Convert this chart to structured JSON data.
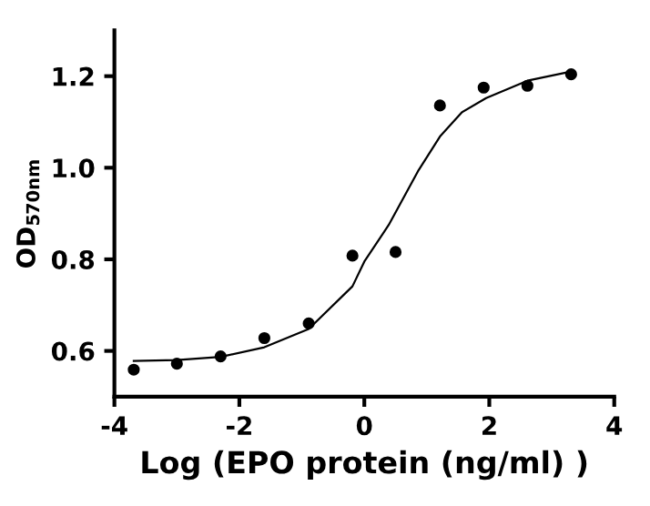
{
  "chart_data": {
    "type": "scatter",
    "xlabel": "Log (EPO protein (ng/ml) )",
    "ylabel": "OD$_{570nm}$",
    "xlim": [
      -4,
      4
    ],
    "xticks": [
      -4,
      -2,
      0,
      2,
      4
    ],
    "ylim": [
      0.5,
      1.3
    ],
    "yticks": [
      0.6,
      0.8,
      {
        "value": 1.0,
        "label": "1.0"
      },
      1.2
    ],
    "grid": false,
    "series": [
      {
        "color": "#000000",
        "marker": "circle",
        "x": [
          -3.69,
          -3.0,
          -2.3,
          -1.6,
          -0.89,
          -0.19,
          0.5,
          1.21,
          1.91,
          2.61,
          3.31
        ],
        "values": [
          0.559,
          0.572,
          0.588,
          0.628,
          0.66,
          0.808,
          0.816,
          1.136,
          1.175,
          1.179,
          1.204
        ]
      },
      {
        "type": "line",
        "color": "#000000",
        "marker": "none",
        "line_style": "solid",
        "x": [
          -3.69,
          -3.0,
          -2.3,
          -1.6,
          -0.89,
          -0.19,
          0.0,
          0.39,
          0.87,
          1.21,
          1.56,
          1.95,
          2.61,
          3.31
        ],
        "values": [
          0.578,
          0.58,
          0.587,
          0.608,
          0.648,
          0.741,
          0.795,
          0.875,
          0.995,
          1.068,
          1.121,
          1.152,
          1.19,
          1.21
        ]
      }
    ]
  }
}
